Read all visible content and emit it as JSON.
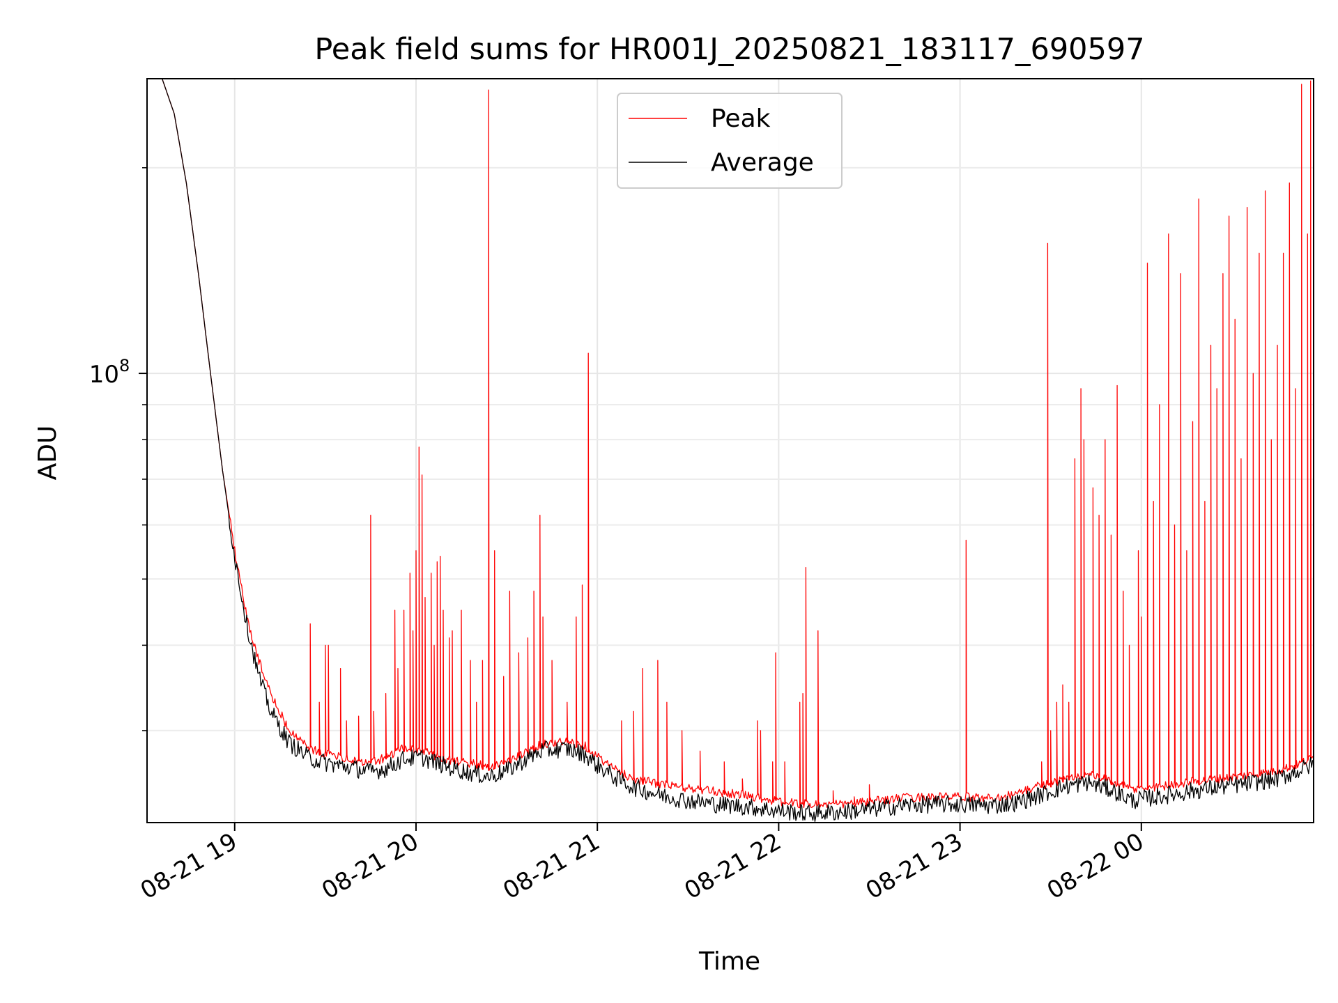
{
  "chart_data": {
    "type": "line",
    "title": "Peak field sums for HR001J_20250821_183117_690597",
    "xlabel": "Time",
    "ylabel": "ADU",
    "yscale": "log",
    "ylim": [
      22000000,
      270000000
    ],
    "xlim": [
      "2025-08-21 18:31",
      "2025-08-22 00:57"
    ],
    "x_ticks": [
      {
        "label": "08-21 19",
        "value": "2025-08-21 19:00"
      },
      {
        "label": "08-21 20",
        "value": "2025-08-21 20:00"
      },
      {
        "label": "08-21 21",
        "value": "2025-08-21 21:00"
      },
      {
        "label": "08-21 22",
        "value": "2025-08-21 22:00"
      },
      {
        "label": "08-21 23",
        "value": "2025-08-21 23:00"
      },
      {
        "label": "08-22 00",
        "value": "2025-08-22 00:00"
      }
    ],
    "y_major_tick": {
      "label_base": "10",
      "label_exp": "8",
      "value": 100000000
    },
    "y_minor_ticks": [
      30000000,
      40000000,
      50000000,
      60000000,
      70000000,
      80000000,
      90000000,
      200000000
    ],
    "grid": true,
    "legend": {
      "placement": "upper center",
      "entries": [
        "Peak",
        "Average"
      ]
    },
    "series": [
      {
        "name": "Peak",
        "color": "#ff0000",
        "baseline": [
          [
            "2025-08-21 18:31",
            270000000
          ],
          [
            "2025-08-21 18:36",
            270000000
          ],
          [
            "2025-08-21 18:40",
            240000000
          ],
          [
            "2025-08-21 18:44",
            190000000
          ],
          [
            "2025-08-21 18:48",
            140000000
          ],
          [
            "2025-08-21 18:52",
            100000000
          ],
          [
            "2025-08-21 18:56",
            72000000
          ],
          [
            "2025-08-21 19:00",
            55000000
          ],
          [
            "2025-08-21 19:04",
            44000000
          ],
          [
            "2025-08-21 19:08",
            38000000
          ],
          [
            "2025-08-21 19:12",
            34000000
          ],
          [
            "2025-08-21 19:18",
            30000000
          ],
          [
            "2025-08-21 19:25",
            28200000
          ],
          [
            "2025-08-21 19:32",
            27600000
          ],
          [
            "2025-08-21 19:40",
            27200000
          ],
          [
            "2025-08-21 19:45",
            26900000
          ],
          [
            "2025-08-21 19:50",
            27400000
          ],
          [
            "2025-08-21 19:56",
            28300000
          ],
          [
            "2025-08-21 20:02",
            28000000
          ],
          [
            "2025-08-21 20:08",
            27400000
          ],
          [
            "2025-08-21 20:14",
            27000000
          ],
          [
            "2025-08-21 20:20",
            26800000
          ],
          [
            "2025-08-21 20:24",
            26600000
          ],
          [
            "2025-08-21 20:30",
            27000000
          ],
          [
            "2025-08-21 20:36",
            27800000
          ],
          [
            "2025-08-21 20:42",
            28700000
          ],
          [
            "2025-08-21 20:50",
            28900000
          ],
          [
            "2025-08-21 20:56",
            28500000
          ],
          [
            "2025-08-21 21:00",
            27500000
          ],
          [
            "2025-08-21 21:06",
            26300000
          ],
          [
            "2025-08-21 21:12",
            25500000
          ],
          [
            "2025-08-21 21:20",
            25100000
          ],
          [
            "2025-08-21 21:30",
            24700000
          ],
          [
            "2025-08-21 21:40",
            24400000
          ],
          [
            "2025-08-21 21:50",
            24100000
          ],
          [
            "2025-08-21 22:00",
            23600000
          ],
          [
            "2025-08-21 22:10",
            23400000
          ],
          [
            "2025-08-21 22:20",
            23400000
          ],
          [
            "2025-08-21 22:30",
            23600000
          ],
          [
            "2025-08-21 22:40",
            23900000
          ],
          [
            "2025-08-21 22:50",
            24000000
          ],
          [
            "2025-08-21 23:00",
            24000000
          ],
          [
            "2025-08-21 23:10",
            23900000
          ],
          [
            "2025-08-21 23:18",
            24200000
          ],
          [
            "2025-08-21 23:26",
            24900000
          ],
          [
            "2025-08-21 23:34",
            25400000
          ],
          [
            "2025-08-21 23:42",
            25900000
          ],
          [
            "2025-08-21 23:50",
            25300000
          ],
          [
            "2025-08-21 23:57",
            24600000
          ],
          [
            "2025-08-22 00:05",
            24800000
          ],
          [
            "2025-08-22 00:15",
            25200000
          ],
          [
            "2025-08-22 00:25",
            25500000
          ],
          [
            "2025-08-22 00:35",
            25800000
          ],
          [
            "2025-08-22 00:45",
            26200000
          ],
          [
            "2025-08-22 00:52",
            26800000
          ],
          [
            "2025-08-22 00:57",
            27400000
          ]
        ],
        "spikes": [
          [
            "2025-08-21 19:25",
            43000000
          ],
          [
            "2025-08-21 19:28",
            33000000
          ],
          [
            "2025-08-21 19:30",
            40000000
          ],
          [
            "2025-08-21 19:31",
            40000000
          ],
          [
            "2025-08-21 19:35",
            37000000
          ],
          [
            "2025-08-21 19:37",
            31000000
          ],
          [
            "2025-08-21 19:41",
            31500000
          ],
          [
            "2025-08-21 19:45",
            62000000
          ],
          [
            "2025-08-21 19:46",
            32000000
          ],
          [
            "2025-08-21 19:50",
            34000000
          ],
          [
            "2025-08-21 19:53",
            45000000
          ],
          [
            "2025-08-21 19:54",
            37000000
          ],
          [
            "2025-08-21 19:56",
            45000000
          ],
          [
            "2025-08-21 19:58",
            51000000
          ],
          [
            "2025-08-21 19:59",
            42000000
          ],
          [
            "2025-08-21 20:00",
            55000000
          ],
          [
            "2025-08-21 20:01",
            78000000
          ],
          [
            "2025-08-21 20:02",
            71000000
          ],
          [
            "2025-08-21 20:03",
            47000000
          ],
          [
            "2025-08-21 20:05",
            51000000
          ],
          [
            "2025-08-21 20:06",
            40000000
          ],
          [
            "2025-08-21 20:07",
            53000000
          ],
          [
            "2025-08-21 20:08",
            54000000
          ],
          [
            "2025-08-21 20:09",
            45000000
          ],
          [
            "2025-08-21 20:11",
            41000000
          ],
          [
            "2025-08-21 20:12",
            42000000
          ],
          [
            "2025-08-21 20:15",
            45000000
          ],
          [
            "2025-08-21 20:18",
            38000000
          ],
          [
            "2025-08-21 20:20",
            33000000
          ],
          [
            "2025-08-21 20:22",
            38000000
          ],
          [
            "2025-08-21 20:24",
            260000000
          ],
          [
            "2025-08-21 20:26",
            55000000
          ],
          [
            "2025-08-21 20:29",
            36000000
          ],
          [
            "2025-08-21 20:31",
            48000000
          ],
          [
            "2025-08-21 20:34",
            39000000
          ],
          [
            "2025-08-21 20:37",
            41000000
          ],
          [
            "2025-08-21 20:39",
            48000000
          ],
          [
            "2025-08-21 20:41",
            62000000
          ],
          [
            "2025-08-21 20:42",
            44000000
          ],
          [
            "2025-08-21 20:45",
            38000000
          ],
          [
            "2025-08-21 20:50",
            33000000
          ],
          [
            "2025-08-21 20:53",
            44000000
          ],
          [
            "2025-08-21 20:55",
            49000000
          ],
          [
            "2025-08-21 20:57",
            107000000
          ],
          [
            "2025-08-21 21:08",
            31000000
          ],
          [
            "2025-08-21 21:12",
            32000000
          ],
          [
            "2025-08-21 21:15",
            37000000
          ],
          [
            "2025-08-21 21:20",
            38000000
          ],
          [
            "2025-08-21 21:23",
            33000000
          ],
          [
            "2025-08-21 21:28",
            30000000
          ],
          [
            "2025-08-21 21:34",
            28000000
          ],
          [
            "2025-08-21 21:42",
            27000000
          ],
          [
            "2025-08-21 21:48",
            25500000
          ],
          [
            "2025-08-21 21:53",
            31000000
          ],
          [
            "2025-08-21 21:54",
            30000000
          ],
          [
            "2025-08-21 21:58",
            27000000
          ],
          [
            "2025-08-21 21:59",
            39000000
          ],
          [
            "2025-08-21 22:02",
            27000000
          ],
          [
            "2025-08-21 22:07",
            33000000
          ],
          [
            "2025-08-21 22:08",
            34000000
          ],
          [
            "2025-08-21 22:09",
            52000000
          ],
          [
            "2025-08-21 22:13",
            42000000
          ],
          [
            "2025-08-21 22:18",
            24500000
          ],
          [
            "2025-08-21 22:25",
            24000000
          ],
          [
            "2025-08-21 22:30",
            25000000
          ],
          [
            "2025-08-21 23:02",
            57000000
          ],
          [
            "2025-08-21 23:27",
            27000000
          ],
          [
            "2025-08-21 23:29",
            155000000
          ],
          [
            "2025-08-21 23:30",
            30000000
          ],
          [
            "2025-08-21 23:32",
            33000000
          ],
          [
            "2025-08-21 23:34",
            35000000
          ],
          [
            "2025-08-21 23:36",
            33000000
          ],
          [
            "2025-08-21 23:38",
            75000000
          ],
          [
            "2025-08-21 23:40",
            95000000
          ],
          [
            "2025-08-21 23:41",
            80000000
          ],
          [
            "2025-08-21 23:44",
            68000000
          ],
          [
            "2025-08-21 23:46",
            62000000
          ],
          [
            "2025-08-21 23:48",
            80000000
          ],
          [
            "2025-08-21 23:50",
            58000000
          ],
          [
            "2025-08-21 23:52",
            96000000
          ],
          [
            "2025-08-21 23:54",
            48000000
          ],
          [
            "2025-08-21 23:56",
            40000000
          ],
          [
            "2025-08-21 23:59",
            55000000
          ],
          [
            "2025-08-22 00:00",
            44000000
          ],
          [
            "2025-08-22 00:02",
            145000000
          ],
          [
            "2025-08-22 00:04",
            65000000
          ],
          [
            "2025-08-22 00:06",
            90000000
          ],
          [
            "2025-08-22 00:09",
            160000000
          ],
          [
            "2025-08-22 00:11",
            60000000
          ],
          [
            "2025-08-22 00:13",
            140000000
          ],
          [
            "2025-08-22 00:15",
            55000000
          ],
          [
            "2025-08-22 00:17",
            85000000
          ],
          [
            "2025-08-22 00:19",
            180000000
          ],
          [
            "2025-08-22 00:21",
            65000000
          ],
          [
            "2025-08-22 00:23",
            110000000
          ],
          [
            "2025-08-22 00:25",
            95000000
          ],
          [
            "2025-08-22 00:27",
            140000000
          ],
          [
            "2025-08-22 00:29",
            170000000
          ],
          [
            "2025-08-22 00:31",
            120000000
          ],
          [
            "2025-08-22 00:33",
            75000000
          ],
          [
            "2025-08-22 00:35",
            175000000
          ],
          [
            "2025-08-22 00:37",
            100000000
          ],
          [
            "2025-08-22 00:39",
            150000000
          ],
          [
            "2025-08-22 00:41",
            185000000
          ],
          [
            "2025-08-22 00:43",
            80000000
          ],
          [
            "2025-08-22 00:45",
            110000000
          ],
          [
            "2025-08-22 00:47",
            150000000
          ],
          [
            "2025-08-22 00:49",
            190000000
          ],
          [
            "2025-08-22 00:51",
            95000000
          ],
          [
            "2025-08-22 00:53",
            265000000
          ],
          [
            "2025-08-22 00:55",
            160000000
          ],
          [
            "2025-08-22 00:56",
            268000000
          ]
        ]
      },
      {
        "name": "Average",
        "color": "#000000",
        "baseline": [
          [
            "2025-08-21 18:31",
            270000000
          ],
          [
            "2025-08-21 18:36",
            270000000
          ],
          [
            "2025-08-21 18:40",
            240000000
          ],
          [
            "2025-08-21 18:44",
            190000000
          ],
          [
            "2025-08-21 18:48",
            140000000
          ],
          [
            "2025-08-21 18:52",
            100000000
          ],
          [
            "2025-08-21 18:56",
            72000000
          ],
          [
            "2025-08-21 19:00",
            54000000
          ],
          [
            "2025-08-21 19:04",
            43000000
          ],
          [
            "2025-08-21 19:08",
            36000000
          ],
          [
            "2025-08-21 19:12",
            32000000
          ],
          [
            "2025-08-21 19:18",
            28800000
          ],
          [
            "2025-08-21 19:25",
            27300000
          ],
          [
            "2025-08-21 19:32",
            26800000
          ],
          [
            "2025-08-21 19:40",
            26400000
          ],
          [
            "2025-08-21 19:45",
            26100000
          ],
          [
            "2025-08-21 19:50",
            26400000
          ],
          [
            "2025-08-21 19:56",
            27300000
          ],
          [
            "2025-08-21 20:02",
            27400000
          ],
          [
            "2025-08-21 20:08",
            26800000
          ],
          [
            "2025-08-21 20:14",
            26300000
          ],
          [
            "2025-08-21 20:20",
            25900000
          ],
          [
            "2025-08-21 20:24",
            25700000
          ],
          [
            "2025-08-21 20:30",
            26200000
          ],
          [
            "2025-08-21 20:36",
            27200000
          ],
          [
            "2025-08-21 20:42",
            28100000
          ],
          [
            "2025-08-21 20:50",
            28200000
          ],
          [
            "2025-08-21 20:56",
            27700000
          ],
          [
            "2025-08-21 21:00",
            26700000
          ],
          [
            "2025-08-21 21:06",
            25600000
          ],
          [
            "2025-08-21 21:12",
            24800000
          ],
          [
            "2025-08-21 21:20",
            24200000
          ],
          [
            "2025-08-21 21:30",
            23700000
          ],
          [
            "2025-08-21 21:40",
            23400000
          ],
          [
            "2025-08-21 21:50",
            23200000
          ],
          [
            "2025-08-21 22:00",
            22900000
          ],
          [
            "2025-08-21 22:10",
            22700000
          ],
          [
            "2025-08-21 22:20",
            22800000
          ],
          [
            "2025-08-21 22:30",
            23000000
          ],
          [
            "2025-08-21 22:40",
            23300000
          ],
          [
            "2025-08-21 22:50",
            23400000
          ],
          [
            "2025-08-21 23:00",
            23400000
          ],
          [
            "2025-08-21 23:10",
            23300000
          ],
          [
            "2025-08-21 23:18",
            23500000
          ],
          [
            "2025-08-21 23:26",
            24100000
          ],
          [
            "2025-08-21 23:34",
            24800000
          ],
          [
            "2025-08-21 23:42",
            25200000
          ],
          [
            "2025-08-21 23:50",
            24600000
          ],
          [
            "2025-08-21 23:57",
            23700000
          ],
          [
            "2025-08-22 00:05",
            24000000
          ],
          [
            "2025-08-22 00:15",
            24400000
          ],
          [
            "2025-08-22 00:25",
            24800000
          ],
          [
            "2025-08-22 00:35",
            25100000
          ],
          [
            "2025-08-22 00:45",
            25500000
          ],
          [
            "2025-08-22 00:52",
            26200000
          ],
          [
            "2025-08-22 00:57",
            26800000
          ]
        ]
      }
    ]
  }
}
